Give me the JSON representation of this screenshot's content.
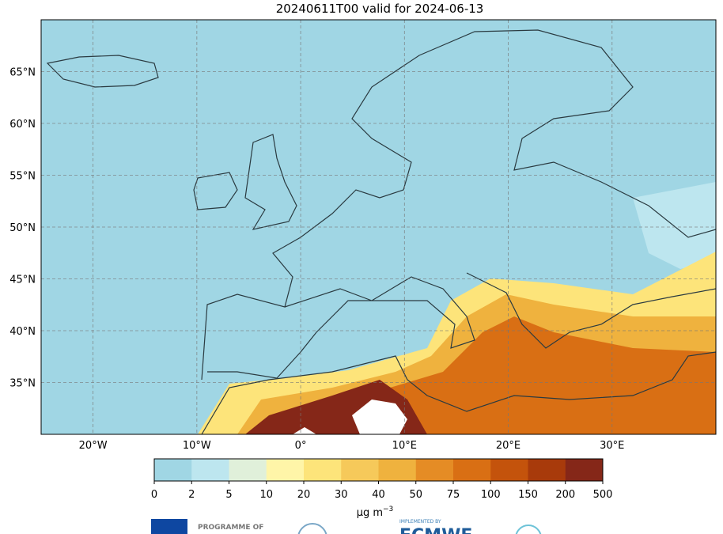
{
  "map": {
    "title": "20240611T00 valid for 2024-06-13",
    "lonlim": [
      -25,
      40
    ],
    "latlim": [
      30,
      70
    ],
    "lonticks": [
      {
        "value": -20,
        "label": "20°W"
      },
      {
        "value": -10,
        "label": "10°W"
      },
      {
        "value": 0,
        "label": "0°"
      },
      {
        "value": 10,
        "label": "10°E"
      },
      {
        "value": 20,
        "label": "20°E"
      },
      {
        "value": 30,
        "label": "30°E"
      }
    ],
    "latticks": [
      {
        "value": 35,
        "label": "35°N"
      },
      {
        "value": 40,
        "label": "40°N"
      },
      {
        "value": 45,
        "label": "45°N"
      },
      {
        "value": 50,
        "label": "50°N"
      },
      {
        "value": 55,
        "label": "55°N"
      },
      {
        "value": 60,
        "label": "60°N"
      },
      {
        "value": 65,
        "label": "65°N"
      }
    ],
    "grid": true,
    "colorbar": {
      "bounds": [
        0,
        2,
        5,
        10,
        20,
        30,
        40,
        50,
        75,
        100,
        150,
        200,
        500
      ],
      "colors": [
        "#a0d6e4",
        "#bde6ef",
        "#e0f0da",
        "#fff5a8",
        "#fde47a",
        "#f6c95a",
        "#efb23e",
        "#e58c25",
        "#d96f14",
        "#c4530c",
        "#a83a0b",
        "#852718"
      ],
      "units": "μg m",
      "units_exp": "−3"
    },
    "logos": {
      "programme": "PROGRAMME OF",
      "implemented": "IMPLEMENTED BY",
      "ecmwf": "ECMWF"
    }
  }
}
